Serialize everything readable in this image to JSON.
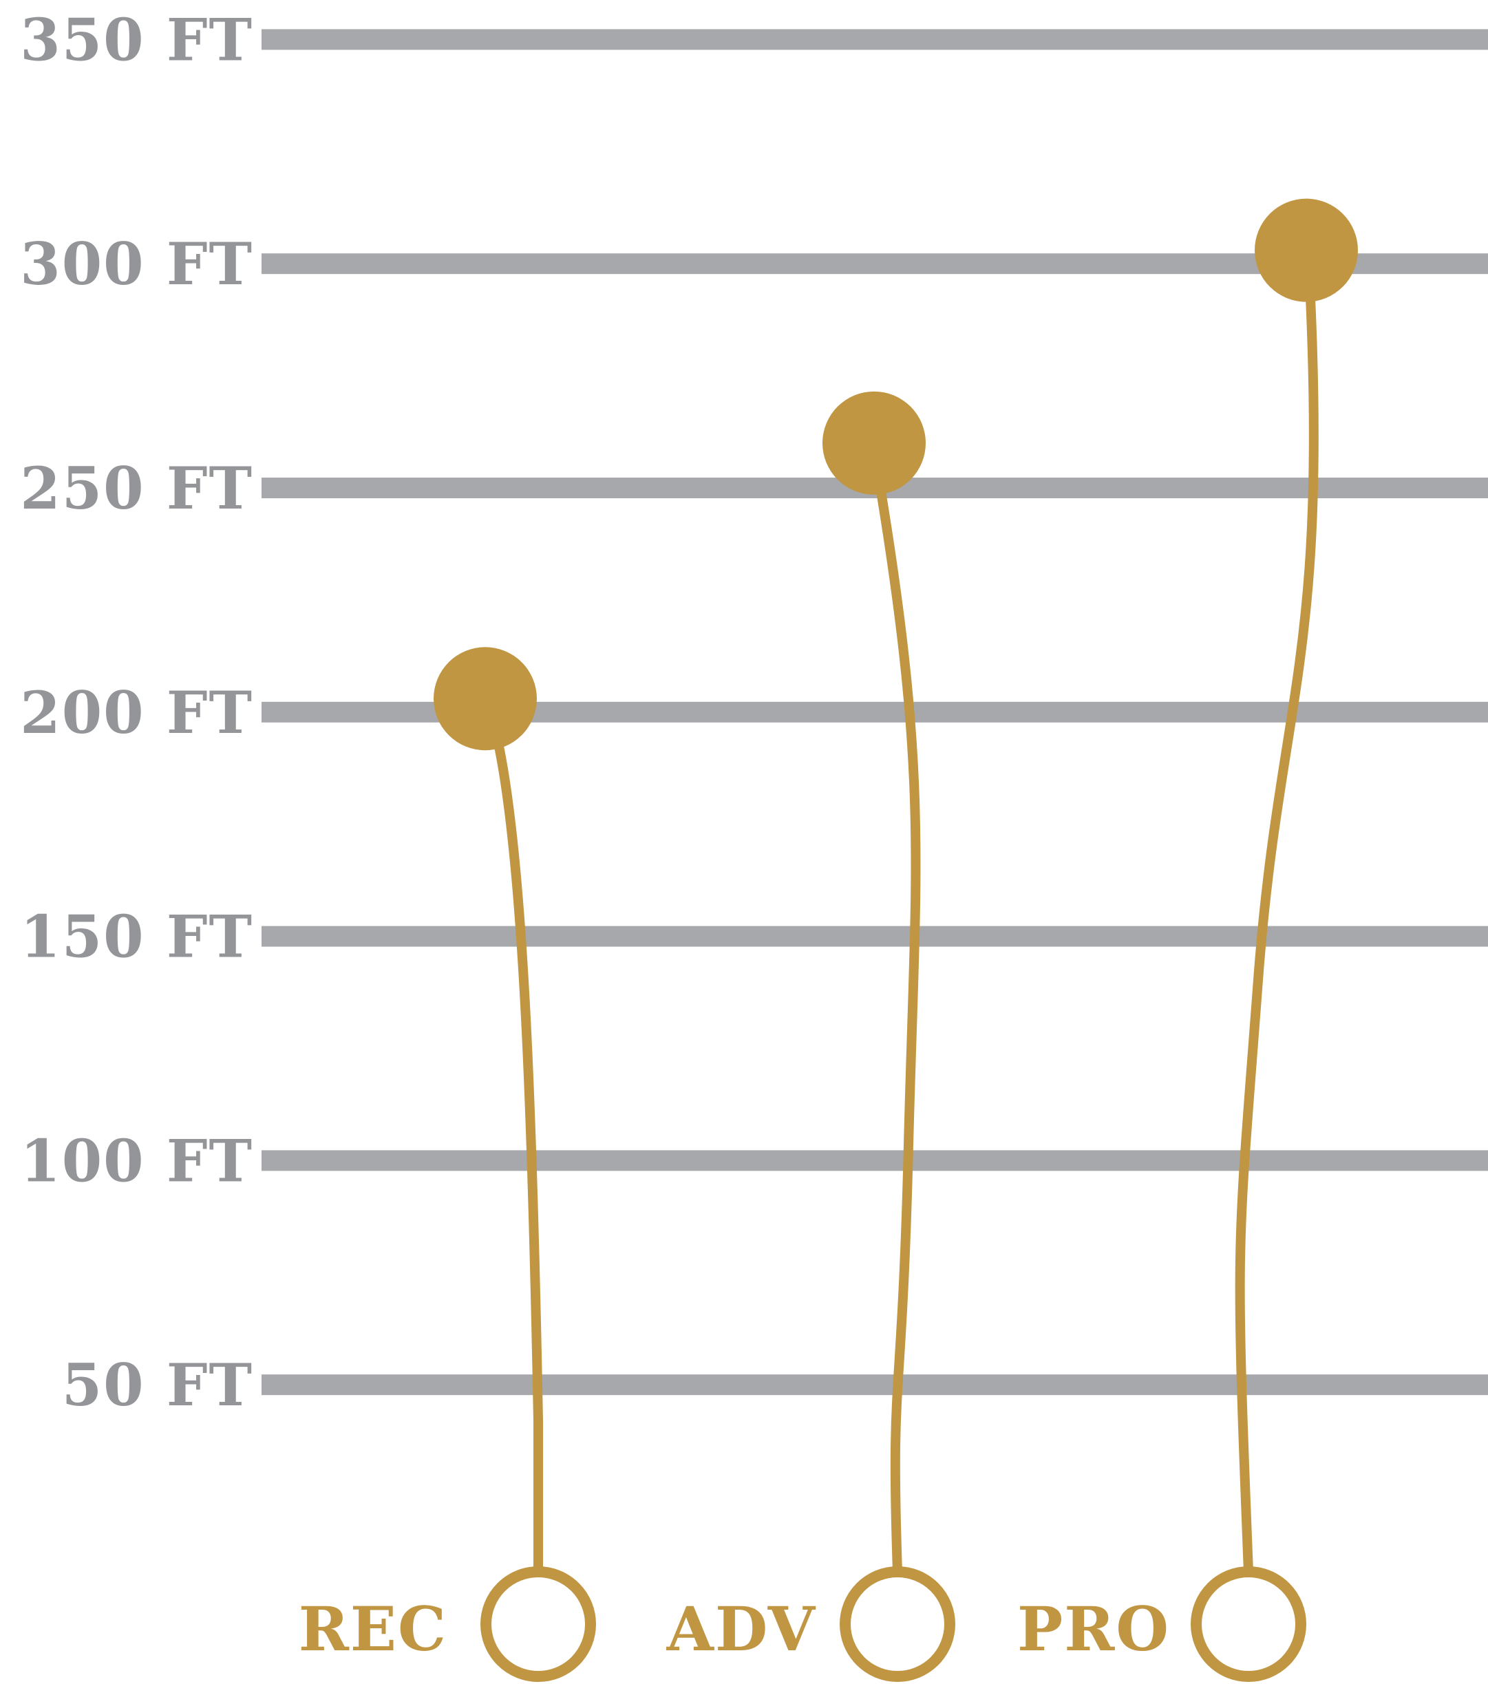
{
  "chart_data": {
    "type": "scatter",
    "unit": "FT",
    "yticks": [
      {
        "value": 50,
        "label": "50 FT"
      },
      {
        "value": 100,
        "label": "100 FT"
      },
      {
        "value": 150,
        "label": "150 FT"
      },
      {
        "value": 200,
        "label": "200 FT"
      },
      {
        "value": 250,
        "label": "250 FT"
      },
      {
        "value": 300,
        "label": "300 FT"
      },
      {
        "value": 350,
        "label": "350 FT"
      }
    ],
    "ylim": [
      0,
      350
    ],
    "grid": true,
    "categories": [
      "REC",
      "ADV",
      "PRO"
    ],
    "values": [
      203,
      260,
      303
    ],
    "colors": {
      "grid": "#a7a8ab",
      "tick_text": "#939598",
      "accent": "#c09643",
      "background": "#ffffff"
    }
  }
}
